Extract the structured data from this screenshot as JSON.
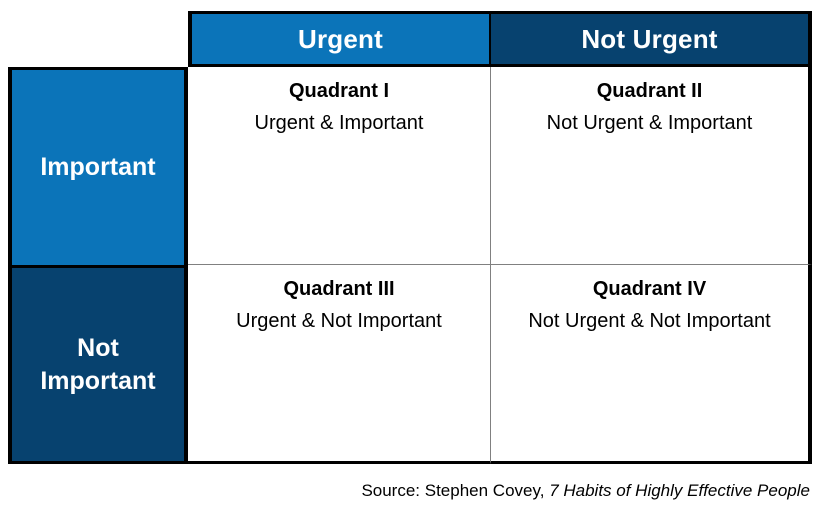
{
  "colors": {
    "blue": "#0B74B9",
    "navy": "#07426F",
    "border": "#000000",
    "divider": "#808080"
  },
  "matrix": {
    "column_headers": {
      "urgent": "Urgent",
      "not_urgent": "Not Urgent"
    },
    "row_headers": {
      "important": "Important",
      "not_important": "Not Important"
    },
    "quadrants": [
      {
        "title": "Quadrant I",
        "subtitle": "Urgent & Important"
      },
      {
        "title": "Quadrant II",
        "subtitle": "Not Urgent & Important"
      },
      {
        "title": "Quadrant III",
        "subtitle": "Urgent & Not Important"
      },
      {
        "title": "Quadrant IV",
        "subtitle": "Not Urgent & Not Important"
      }
    ]
  },
  "footer": {
    "source_prefix": "Source: Stephen Covey, ",
    "source_title": "7 Habits of Highly Effective People"
  }
}
